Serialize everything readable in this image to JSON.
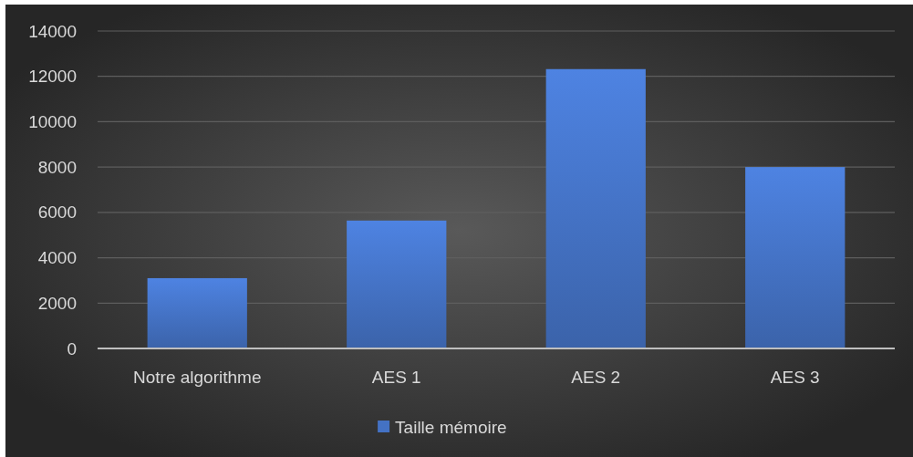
{
  "chart_data": {
    "type": "bar",
    "categories": [
      "Notre algorithme",
      "AES 1",
      "AES 2",
      "AES 3"
    ],
    "series": [
      {
        "name": "Taille mémoire",
        "color": "#4472c4",
        "values": [
          3100,
          5640,
          12320,
          8000
        ]
      }
    ],
    "ylim": [
      0,
      14000
    ],
    "yticks": [
      0,
      2000,
      4000,
      6000,
      8000,
      10000,
      12000,
      14000
    ],
    "grid": "y",
    "legend": "bottom"
  }
}
